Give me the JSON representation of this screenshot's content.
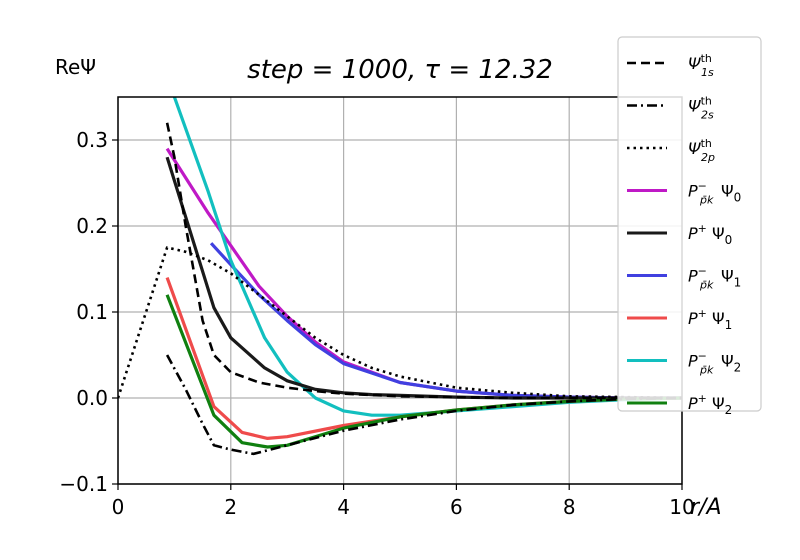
{
  "chart_data": {
    "type": "line",
    "title": "step = 1000, τ = 12.32",
    "ylabel": "ReΨ",
    "xlabel": "r/A",
    "xlim": [
      0,
      10
    ],
    "ylim": [
      -0.1,
      0.35
    ],
    "xticks": [
      "0",
      "2",
      "4",
      "6",
      "8",
      "10"
    ],
    "yticks": [
      "−0.1",
      "0.0",
      "0.1",
      "0.2",
      "0.3"
    ],
    "grid": true,
    "legend_position": "top-right",
    "colors": {
      "magenta": "#bf19c6",
      "black": "#1a1a1a",
      "blue": "#4040e0",
      "red": "#ef4b4b",
      "cyan": "#12bfbf",
      "green": "#108010",
      "grid": "#b0b0b0"
    },
    "series": [
      {
        "name": "Ψ_1s^th",
        "label_main": "Ψ",
        "label_sup": "th",
        "label_sub": "1s",
        "style": "dashed",
        "color": "#000000",
        "x": [
          0.87,
          1.0,
          1.2,
          1.5,
          1.7,
          2.0,
          2.5,
          3.0,
          3.5,
          4.0,
          5.0,
          6.0,
          7.0,
          8.0,
          9.0,
          10.0
        ],
        "y": [
          0.32,
          0.28,
          0.2,
          0.09,
          0.05,
          0.03,
          0.018,
          0.012,
          0.008,
          0.005,
          0.002,
          0.001,
          0.0,
          0.0,
          0.0,
          0.0
        ]
      },
      {
        "name": "Ψ_2s^th",
        "label_main": "Ψ",
        "label_sup": "th",
        "label_sub": "2s",
        "style": "dashdot",
        "color": "#000000",
        "x": [
          0.87,
          1.2,
          1.5,
          1.7,
          2.0,
          2.4,
          3.0,
          4.0,
          5.0,
          6.0,
          7.0,
          8.0,
          9.0,
          10.0
        ],
        "y": [
          0.05,
          0.01,
          -0.03,
          -0.055,
          -0.06,
          -0.065,
          -0.055,
          -0.038,
          -0.025,
          -0.015,
          -0.008,
          -0.004,
          -0.001,
          0.0
        ]
      },
      {
        "name": "Ψ_2p^th",
        "label_main": "Ψ",
        "label_sup": "th",
        "label_sub": "2p",
        "style": "dotted",
        "color": "#000000",
        "x": [
          0.0,
          0.87,
          1.2,
          1.6,
          2.0,
          2.5,
          3.0,
          3.5,
          4.0,
          4.5,
          5.0,
          6.0,
          7.0,
          8.0,
          9.0,
          10.0
        ],
        "y": [
          0.0,
          0.175,
          0.17,
          0.16,
          0.145,
          0.12,
          0.095,
          0.07,
          0.05,
          0.035,
          0.025,
          0.012,
          0.006,
          0.002,
          0.001,
          0.0
        ]
      },
      {
        "name": "P_pk^- Ψ0",
        "label_main": "P",
        "label_sup": "−",
        "label_sub": "p̄k",
        "label_tail": "Ψ",
        "label_tail_sub": "0",
        "style": "solid",
        "color": "#bf19c6",
        "x": [
          0.87,
          1.6,
          2.5,
          3.0,
          3.5,
          4.0,
          5.0,
          6.0,
          7.0,
          8.0,
          9.0,
          10.0
        ],
        "y": [
          0.29,
          0.215,
          0.13,
          0.095,
          0.065,
          0.042,
          0.018,
          0.008,
          0.003,
          0.001,
          0.0,
          0.0
        ]
      },
      {
        "name": "P+Ψ0",
        "label_main": "P",
        "label_sup": "+",
        "label_sub": "",
        "label_tail": "Ψ",
        "label_tail_sub": "0",
        "style": "solid",
        "color": "#1a1a1a",
        "x": [
          0.87,
          1.7,
          2.0,
          2.6,
          3.0,
          3.5,
          4.0,
          4.5,
          5.0,
          6.0,
          7.0,
          8.0,
          9.0,
          10.0
        ],
        "y": [
          0.28,
          0.105,
          0.07,
          0.035,
          0.02,
          0.01,
          0.006,
          0.004,
          0.003,
          0.001,
          0.0,
          0.0,
          0.0,
          0.0
        ]
      },
      {
        "name": "P_pk^- Ψ1",
        "label_main": "P",
        "label_sup": "−",
        "label_sub": "p̄k",
        "label_tail": "Ψ",
        "label_tail_sub": "1",
        "style": "solid",
        "color": "#4040e0",
        "x": [
          1.65,
          2.0,
          2.5,
          3.0,
          3.5,
          4.0,
          5.0,
          6.0,
          7.0,
          8.0,
          9.0,
          10.0
        ],
        "y": [
          0.18,
          0.155,
          0.12,
          0.09,
          0.062,
          0.04,
          0.018,
          0.008,
          0.003,
          0.001,
          0.0,
          0.0
        ]
      },
      {
        "name": "P+Ψ1",
        "label_main": "P",
        "label_sup": "+",
        "label_sub": "",
        "label_tail": "Ψ",
        "label_tail_sub": "1",
        "style": "solid",
        "color": "#ef4b4b",
        "x": [
          0.87,
          1.7,
          2.2,
          2.65,
          3.0,
          4.0,
          5.0,
          6.0,
          7.0,
          8.0,
          9.0,
          10.0
        ],
        "y": [
          0.14,
          -0.01,
          -0.04,
          -0.047,
          -0.045,
          -0.032,
          -0.022,
          -0.014,
          -0.008,
          -0.004,
          -0.001,
          0.0
        ]
      },
      {
        "name": "P_pk^- Ψ2",
        "label_main": "P",
        "label_sup": "−",
        "label_sub": "p̄k",
        "label_tail": "Ψ",
        "label_tail_sub": "2",
        "style": "solid",
        "color": "#12bfbf",
        "x": [
          1.0,
          1.6,
          2.0,
          2.6,
          3.0,
          3.5,
          4.0,
          4.5,
          5.0,
          6.0,
          7.0,
          8.0,
          9.0,
          10.0
        ],
        "y": [
          0.35,
          0.24,
          0.16,
          0.07,
          0.03,
          0.0,
          -0.015,
          -0.02,
          -0.02,
          -0.015,
          -0.01,
          -0.005,
          -0.002,
          0.0
        ]
      },
      {
        "name": "P+Ψ2",
        "label_main": "P",
        "label_sup": "+",
        "label_sub": "",
        "label_tail": "Ψ",
        "label_tail_sub": "2",
        "style": "solid",
        "color": "#108010",
        "x": [
          0.87,
          1.7,
          2.2,
          2.65,
          3.0,
          4.0,
          5.0,
          6.0,
          7.0,
          8.0,
          9.0,
          10.0
        ],
        "y": [
          0.12,
          -0.02,
          -0.052,
          -0.057,
          -0.055,
          -0.035,
          -0.022,
          -0.014,
          -0.008,
          -0.004,
          -0.001,
          0.0
        ]
      }
    ]
  }
}
